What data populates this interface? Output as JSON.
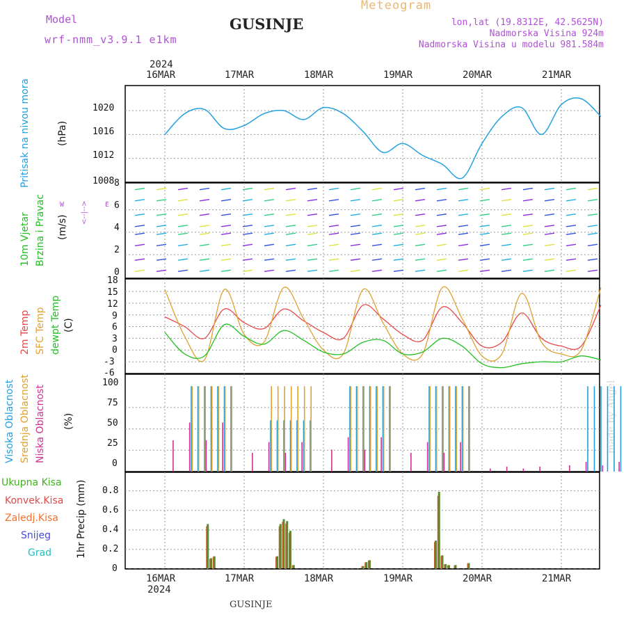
{
  "header": {
    "model_label": "Model",
    "model_name": "wrf-nmm_v3.9.1 e1km",
    "station": "GUSINJE",
    "meteogram_label": "Meteogram",
    "lonlat": "lon,lat (19.8312E, 42.5625N)",
    "elevation": "Nadmorska Visina 924m",
    "model_elevation": "Nadmorska Visina u modelu 981.584m"
  },
  "footer": {
    "station": "GUSINJE",
    "credit": "made by Angel"
  },
  "colors": {
    "pressure": "#22a0e0",
    "temp2m": "#e84848",
    "sfc": "#e0a030",
    "dewpt": "#20c020",
    "high": "#20a0e0",
    "mid": "#e0a030",
    "low": "#d03090",
    "total": "#40b020",
    "conv": "#e04848",
    "freezing": "#f07030",
    "snow": "#4848e0",
    "grad": "#20c0c0",
    "purple": "#b050d8"
  },
  "axis": {
    "year": "2024",
    "days": [
      "16MAR",
      "17MAR",
      "18MAR",
      "19MAR",
      "20MAR",
      "21MAR"
    ]
  },
  "panels": {
    "pressure": {
      "labels": [
        "Pritisak na nivou mora"
      ],
      "unit": "(hPa)",
      "ticks": [
        "1008",
        "1012",
        "1016",
        "1020"
      ]
    },
    "wind": {
      "labels": [
        "10m Vjetar",
        "Brzina i Pravac"
      ],
      "unit": "(m/s)",
      "ticks": [
        "0",
        "2",
        "4",
        "6",
        "8"
      ],
      "compass": {
        "w": "W",
        "e": "E",
        "dir": "<--|-->"
      }
    },
    "temp": {
      "labels": [
        "2m Temp",
        "SFC Temp",
        "dewpt Temp"
      ],
      "unit": "(C)",
      "ticks": [
        "-6",
        "-3",
        "0",
        "3",
        "6",
        "9",
        "12",
        "15",
        "18"
      ]
    },
    "cloud": {
      "labels": [
        "Visoka Oblacnost",
        "Srednja Oblacnost",
        "Niska Oblacnost"
      ],
      "unit": "(%)",
      "ticks": [
        "0",
        "25",
        "50",
        "75",
        "100"
      ]
    },
    "precip": {
      "legend": [
        "Ukupna Kisa",
        "Konvek.Kisa",
        "Zaledj.Kisa",
        "Snijeg",
        "Grad"
      ],
      "unit": "1hr Precip (mm)",
      "ticks": [
        "0",
        "0.2",
        "0.4",
        "0.6",
        "0.8"
      ]
    }
  },
  "chart_data": [
    {
      "type": "line",
      "title": "",
      "ylabel": "Pritisak na nivou mora (hPa)",
      "ylim": [
        1008,
        1023
      ],
      "x": [
        "16MAR00",
        "16MAR06",
        "16MAR12",
        "16MAR18",
        "17MAR00",
        "17MAR06",
        "17MAR12",
        "17MAR18",
        "18MAR00",
        "18MAR06",
        "18MAR12",
        "18MAR18",
        "19MAR00",
        "19MAR06",
        "19MAR12",
        "19MAR18",
        "20MAR00",
        "20MAR06",
        "20MAR12",
        "20MAR18",
        "21MAR00",
        "21MAR06",
        "21MAR12"
      ],
      "series": [
        {
          "name": "",
          "values": [
            1016.0,
            1019.5,
            1020.2,
            1017.0,
            1017.5,
            1019.5,
            1020.0,
            1018.5,
            1020.5,
            1019.5,
            1016.5,
            1013.0,
            1014.5,
            1012.5,
            1011.0,
            1008.7,
            1014.5,
            1019.0,
            1020.5,
            1016.0,
            1021.0,
            1022.0,
            1019.0
          ]
        }
      ]
    },
    {
      "type": "line",
      "title": "",
      "ylabel": "Temp (C)",
      "ylim": [
        -6,
        18
      ],
      "x": [
        "16MAR00",
        "16MAR06",
        "16MAR12",
        "16MAR18",
        "17MAR00",
        "17MAR06",
        "17MAR12",
        "17MAR18",
        "18MAR00",
        "18MAR06",
        "18MAR12",
        "18MAR18",
        "19MAR00",
        "19MAR06",
        "19MAR12",
        "19MAR18",
        "20MAR00",
        "20MAR06",
        "20MAR12",
        "20MAR18",
        "21MAR00",
        "21MAR06",
        "21MAR12"
      ],
      "series": [
        {
          "name": "2m Temp",
          "values": [
            8.5,
            6.0,
            3.0,
            10.5,
            7.0,
            5.5,
            10.5,
            7.5,
            4.5,
            3.0,
            11.5,
            8.0,
            4.0,
            2.5,
            11.0,
            7.0,
            1.0,
            2.0,
            9.5,
            3.0,
            1.0,
            1.0,
            11.5
          ]
        },
        {
          "name": "SFC Temp",
          "values": [
            15.5,
            3.5,
            -2.5,
            15.5,
            4.0,
            2.0,
            16.0,
            8.0,
            0.0,
            -1.0,
            15.5,
            7.0,
            -1.0,
            -1.0,
            16.0,
            8.0,
            -1.5,
            -1.0,
            14.5,
            2.0,
            -1.0,
            0.0,
            16.0
          ]
        },
        {
          "name": "dewpt Temp",
          "values": [
            4.5,
            -1.0,
            -1.5,
            6.5,
            3.5,
            1.5,
            5.0,
            2.5,
            -0.5,
            -1.0,
            2.0,
            2.5,
            -1.0,
            -0.5,
            3.0,
            1.0,
            -3.5,
            -4.5,
            -3.5,
            -3.0,
            -3.0,
            -1.5,
            -2.5
          ]
        }
      ]
    },
    {
      "type": "bar",
      "title": "",
      "ylabel": "1hr Precip (mm)",
      "ylim": [
        0,
        0.9
      ],
      "x": [
        "16MAR13",
        "16MAR14",
        "16MAR15",
        "17MAR10",
        "17MAR11",
        "17MAR12",
        "17MAR13",
        "17MAR14",
        "17MAR15",
        "18MAR12",
        "18MAR13",
        "18MAR14",
        "19MAR10",
        "19MAR11",
        "19MAR12",
        "19MAR13",
        "19MAR14",
        "19MAR16",
        "19MAR20"
      ],
      "series": [
        {
          "name": "Ukupna Kisa",
          "values": [
            0.46,
            0.11,
            0.13,
            0.13,
            0.46,
            0.51,
            0.49,
            0.39,
            0.04,
            0.03,
            0.07,
            0.09,
            0.29,
            0.79,
            0.14,
            0.05,
            0.04,
            0.04,
            0.06
          ]
        }
      ]
    },
    {
      "type": "bar",
      "title": "",
      "ylabel": "Oblacnost (%)",
      "ylim": [
        0,
        100
      ],
      "x": [
        "16MAR",
        "17MAR",
        "18MAR",
        "19MAR",
        "20MAR",
        "21MAR"
      ],
      "series": [
        {
          "name": "Visoka Oblacnost",
          "values": [
            100,
            60,
            100,
            100,
            0,
            100
          ]
        },
        {
          "name": "Srednja Oblacnost",
          "values": [
            100,
            100,
            100,
            100,
            0,
            0
          ]
        },
        {
          "name": "Niska Oblacnost",
          "values": [
            50,
            30,
            35,
            30,
            5,
            10
          ]
        }
      ]
    }
  ]
}
